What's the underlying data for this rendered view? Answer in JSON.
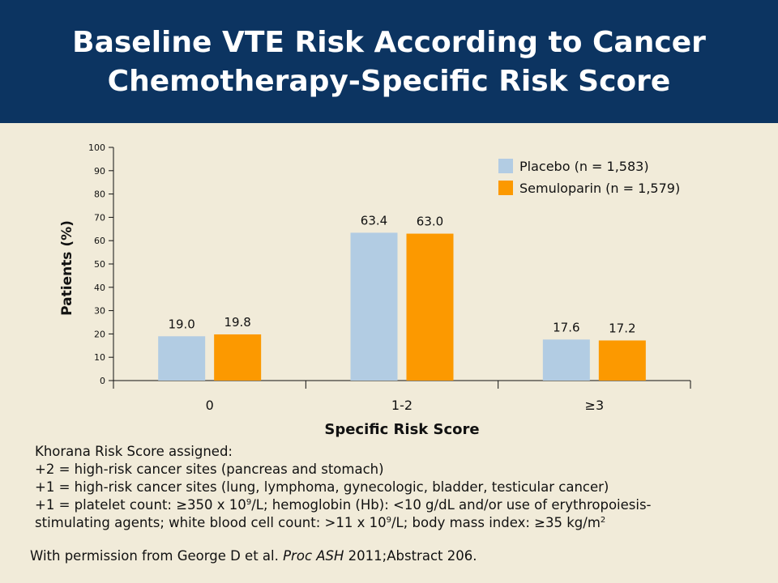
{
  "header": {
    "title_line1": "Baseline VTE Risk According to Cancer",
    "title_line2": "Chemotherapy-Specific Risk Score",
    "bg_color": "#0c3461"
  },
  "chart_data": {
    "type": "bar",
    "categories": [
      "0",
      "1-2",
      "≥3"
    ],
    "series": [
      {
        "name": "Placebo (n = 1,583)",
        "values": [
          19.0,
          63.4,
          17.6
        ],
        "labels": [
          "19.0",
          "63.4",
          "17.6"
        ],
        "color": "#b2cce3"
      },
      {
        "name": "Semuloparin (n = 1,579)",
        "values": [
          19.8,
          63.0,
          17.2
        ],
        "labels": [
          "19.8",
          "63.0",
          "17.2"
        ],
        "color": "#fc9900"
      }
    ],
    "xlabel": "Specific Risk Score",
    "ylabel": "Patients (%)",
    "ylim": [
      0,
      100
    ],
    "yticks": [
      "0",
      "10",
      "20",
      "30",
      "40",
      "50",
      "60",
      "70",
      "80",
      "90",
      "100"
    ],
    "grid": false,
    "legend_position": "top-right"
  },
  "notes": {
    "line1": "Khorana Risk Score assigned:",
    "line2": "+2 = high-risk cancer sites (pancreas and stomach)",
    "line3": "+1 = high-risk cancer sites (lung, lymphoma, gynecologic, bladder, testicular cancer)",
    "line4_a": "+1 = platelet count: ≥350 x 10",
    "line4_sup": "9",
    "line4_b": "/L; hemoglobin (Hb): <10 g/dL and/or use of erythropoiesis-",
    "line5_a": "stimulating agents; white blood cell count: >11 x 10",
    "line5_sup1": "9",
    "line5_b": "/L; body mass index: ≥35 kg/m",
    "line5_sup2": "2"
  },
  "source": {
    "prefix": "With permission from George D et al. ",
    "journal": "Proc ASH",
    "suffix": " 2011;Abstract 206."
  }
}
